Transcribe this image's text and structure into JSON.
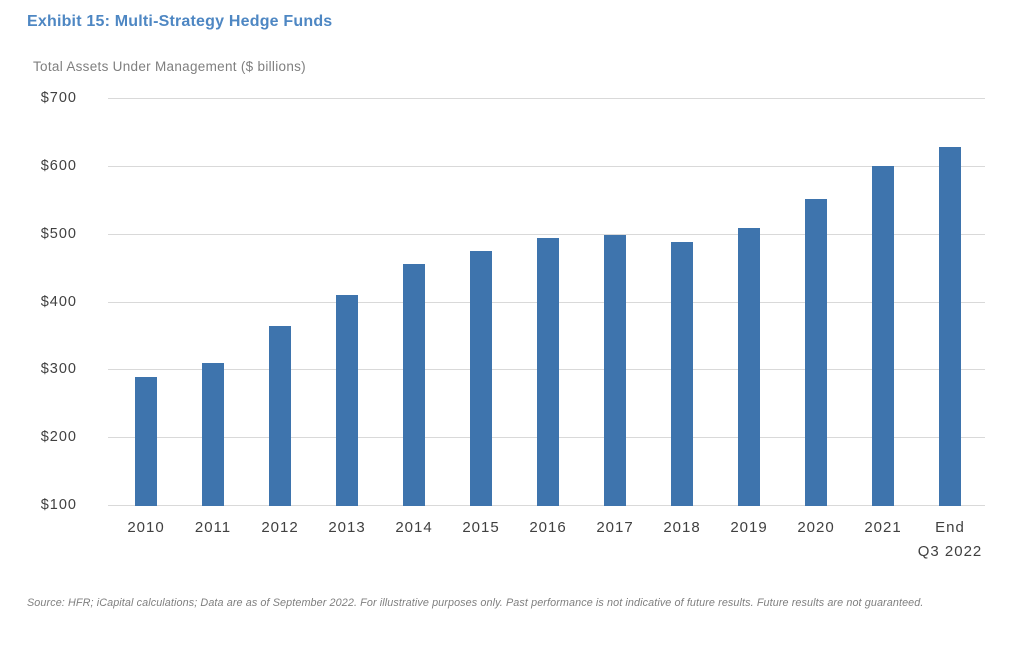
{
  "page": {
    "title": "Exhibit 15: Multi-Strategy Hedge Funds",
    "subtitle": "Total Assets Under Management ($ billions)",
    "source": "Source: HFR; iCapital calculations; Data are as of September 2022. For illustrative purposes only. Past performance is not indicative of future results. Future results are not guaranteed."
  },
  "colors": {
    "title": "#4E87C3",
    "bar": "#3E74AD",
    "gridline": "#D9D9D9",
    "axis_label": "#404040",
    "muted_text": "#7F7F7F"
  },
  "chart_data": {
    "type": "bar",
    "title": "Exhibit 15: Multi-Strategy Hedge Funds",
    "subtitle": "Total Assets Under Management ($ billions)",
    "categories": [
      "2010",
      "2011",
      "2012",
      "2013",
      "2014",
      "2015",
      "2016",
      "2017",
      "2018",
      "2019",
      "2020",
      "2021",
      "End\nQ3 2022"
    ],
    "values": [
      289,
      310,
      364,
      410,
      456,
      474,
      494,
      498,
      487,
      508,
      551,
      600,
      628
    ],
    "xlabel": "",
    "ylabel": "Total Assets Under Management ($ billions)",
    "y_ticks": [
      "$700",
      "$600",
      "$500",
      "$400",
      "$300",
      "$200",
      "$100"
    ],
    "y_tick_values": [
      700,
      600,
      500,
      400,
      300,
      200,
      100
    ],
    "ylim": [
      100,
      700
    ],
    "grid": true,
    "legend": false,
    "bar_baseline": 100
  }
}
